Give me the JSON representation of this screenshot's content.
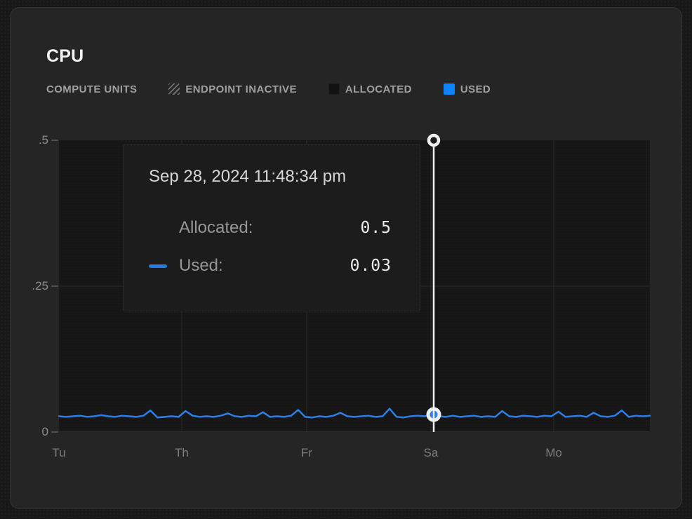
{
  "panel": {
    "title": "CPU"
  },
  "legend": {
    "items": [
      {
        "label": "COMPUTE UNITS",
        "icon": "none"
      },
      {
        "label": "ENDPOINT INACTIVE",
        "icon": "hatched-square"
      },
      {
        "label": "ALLOCATED",
        "icon": "dark-square"
      },
      {
        "label": "USED",
        "icon": "blue-square"
      }
    ]
  },
  "tooltip": {
    "timestamp": "Sep 28, 2024 11:48:34 pm",
    "rows": [
      {
        "label": "Allocated:",
        "value": "0.5",
        "marker": "none"
      },
      {
        "label": "Used:",
        "value": "0.03",
        "marker": "blue-dash"
      }
    ]
  },
  "chart_data": {
    "type": "line",
    "title": "CPU",
    "xlabel": "",
    "ylabel": "",
    "ylim": [
      0,
      0.5
    ],
    "grid": true,
    "yticks": [
      {
        "label": ".5",
        "value": 0.5
      },
      {
        "label": ".25",
        "value": 0.25
      },
      {
        "label": "0",
        "value": 0
      }
    ],
    "xticks": [
      {
        "label": "Tu",
        "f": 0
      },
      {
        "label": "Th",
        "f": 0.2078
      },
      {
        "label": "Fr",
        "f": 0.4192
      },
      {
        "label": "Sa",
        "f": 0.6294
      },
      {
        "label": "Mo",
        "f": 0.8373
      }
    ],
    "series": [
      {
        "name": "Allocated",
        "render": "area",
        "constant_value": 0.5
      },
      {
        "name": "Used",
        "render": "line",
        "values": [
          0.027,
          0.026,
          0.027,
          0.028,
          0.026,
          0.027,
          0.029,
          0.027,
          0.026,
          0.028,
          0.027,
          0.026,
          0.028,
          0.037,
          0.025,
          0.026,
          0.027,
          0.026,
          0.036,
          0.028,
          0.026,
          0.027,
          0.026,
          0.028,
          0.032,
          0.027,
          0.026,
          0.028,
          0.027,
          0.034,
          0.026,
          0.027,
          0.026,
          0.028,
          0.038,
          0.026,
          0.025,
          0.027,
          0.026,
          0.028,
          0.033,
          0.027,
          0.026,
          0.027,
          0.028,
          0.026,
          0.027,
          0.04,
          0.026,
          0.025,
          0.027,
          0.028,
          0.027,
          0.03,
          0.027,
          0.026,
          0.028,
          0.026,
          0.027,
          0.028,
          0.026,
          0.027,
          0.026,
          0.036,
          0.027,
          0.026,
          0.028,
          0.027,
          0.026,
          0.028,
          0.027,
          0.035,
          0.026,
          0.027,
          0.028,
          0.026,
          0.033,
          0.027,
          0.026,
          0.028,
          0.037,
          0.026,
          0.028,
          0.027,
          0.028
        ]
      }
    ],
    "crosshair": {
      "f": 0.6342,
      "allocated_value": 0.5,
      "used_value": 0.03
    },
    "colors": {
      "used_line": "#2b7fe8",
      "used_legend": "#0d84ff",
      "allocated_fill": "#161616",
      "allocated_dot": "#1e1e1e",
      "gridline": "#2a2a2a",
      "axis_line": "#2d2d2d",
      "crosshair": "#f0f0f0",
      "marker_inner_blue": "#2e7fe8"
    }
  }
}
